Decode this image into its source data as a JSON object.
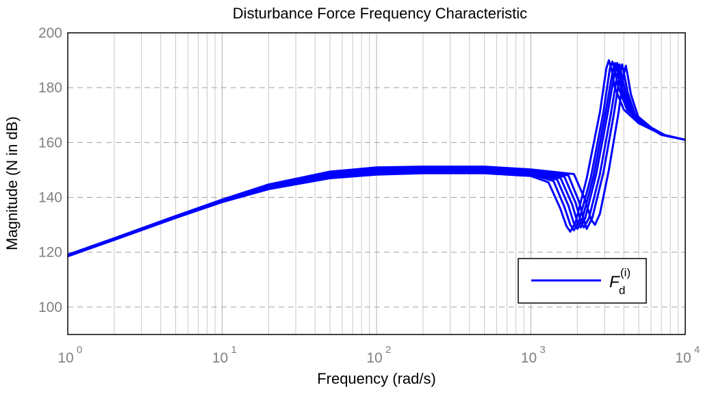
{
  "chart_data": {
    "type": "line",
    "title": "Disturbance Force Frequency Characteristic",
    "xlabel": "Frequency (rad/s)",
    "ylabel": "Magnitude (N in dB)",
    "x_scale": "log",
    "xlim": [
      1,
      10000
    ],
    "ylim": [
      90,
      200
    ],
    "x_ticks": [
      {
        "base": "10",
        "exp": "0",
        "value": 1
      },
      {
        "base": "10",
        "exp": "1",
        "value": 10
      },
      {
        "base": "10",
        "exp": "2",
        "value": 100
      },
      {
        "base": "10",
        "exp": "3",
        "value": 1000
      },
      {
        "base": "10",
        "exp": "4",
        "value": 10000
      }
    ],
    "y_ticks": [
      "100",
      "120",
      "140",
      "160",
      "180",
      "200"
    ],
    "grid": true,
    "legend": {
      "position": "bottom-right",
      "symbol": "F",
      "sub": "d",
      "sup": "(i)"
    },
    "line_color": "#0000ff",
    "series": [
      {
        "x": [
          1,
          2,
          5,
          10,
          20,
          50,
          100,
          200,
          500,
          1000,
          1300,
          1550,
          1700,
          1800,
          1950,
          2300,
          2800,
          3080,
          3200,
          3350,
          3500,
          4000,
          5000,
          7000,
          10000
        ],
        "y": [
          118.5,
          124.5,
          132.5,
          138.3,
          143,
          147,
          148.3,
          148.8,
          148.8,
          147.8,
          145.5,
          136,
          129.5,
          127.5,
          131,
          147,
          171,
          187,
          190,
          186,
          180,
          172,
          167,
          163,
          161
        ]
      },
      {
        "x": [
          1,
          2,
          5,
          10,
          20,
          50,
          100,
          200,
          500,
          1000,
          1400,
          1650,
          1800,
          1900,
          2050,
          2450,
          2950,
          3250,
          3370,
          3500,
          3700,
          4200,
          5200,
          7000,
          10000
        ],
        "y": [
          118.6,
          124.6,
          132.6,
          138.5,
          143.4,
          147.6,
          149,
          149.4,
          149.4,
          148.4,
          146,
          136.5,
          130,
          128,
          131.5,
          147.5,
          171,
          187,
          189.5,
          186,
          180,
          172,
          167,
          163,
          161
        ]
      },
      {
        "x": [
          1,
          2,
          5,
          10,
          20,
          50,
          100,
          200,
          500,
          1000,
          1480,
          1750,
          1900,
          2000,
          2150,
          2550,
          3050,
          3400,
          3500,
          3650,
          3850,
          4350,
          5400,
          7000,
          10000
        ],
        "y": [
          118.7,
          124.7,
          132.7,
          138.6,
          143.7,
          148.1,
          149.5,
          149.9,
          149.9,
          148.9,
          146.5,
          137,
          130.5,
          128.5,
          132,
          148,
          171,
          186.5,
          189,
          185.5,
          179.5,
          171.5,
          166.5,
          163,
          161
        ]
      },
      {
        "x": [
          1,
          2,
          5,
          10,
          20,
          50,
          100,
          200,
          500,
          1000,
          1560,
          1850,
          2000,
          2100,
          2250,
          2650,
          3150,
          3500,
          3620,
          3750,
          3950,
          4450,
          5500,
          7000,
          10000
        ],
        "y": [
          118.8,
          124.8,
          132.8,
          138.8,
          144,
          148.5,
          150,
          150.3,
          150.3,
          149.3,
          147,
          137.5,
          131,
          129,
          132.5,
          148.5,
          171,
          186,
          189,
          185,
          179,
          171,
          166.5,
          163,
          161
        ]
      },
      {
        "x": [
          1,
          2,
          5,
          10,
          20,
          50,
          100,
          200,
          500,
          1000,
          1650,
          1950,
          2100,
          2200,
          2380,
          2800,
          3300,
          3650,
          3750,
          3880,
          4100,
          4600,
          5600,
          7000,
          10000
        ],
        "y": [
          118.9,
          124.9,
          133,
          139,
          144.3,
          148.9,
          150.4,
          150.7,
          150.7,
          149.7,
          147.5,
          138,
          131.5,
          129,
          132.5,
          148.5,
          170.5,
          185.5,
          188.5,
          184.5,
          178.5,
          170.5,
          166,
          162.8,
          161
        ]
      },
      {
        "x": [
          1,
          2,
          5,
          10,
          20,
          50,
          100,
          200,
          500,
          1000,
          1750,
          2050,
          2200,
          2300,
          2500,
          2950,
          3450,
          3800,
          3900,
          4030,
          4250,
          4750,
          5800,
          7000,
          10000
        ],
        "y": [
          119,
          125,
          133.1,
          139.1,
          144.5,
          149.2,
          150.7,
          151,
          151,
          150,
          148,
          138.5,
          132,
          128.5,
          132.5,
          149,
          170.5,
          185.5,
          188.5,
          184.5,
          178,
          170,
          166,
          162.8,
          161
        ]
      },
      {
        "x": [
          1,
          2,
          5,
          10,
          20,
          50,
          100,
          200,
          500,
          1000,
          1900,
          2250,
          2450,
          2600,
          2800,
          3200,
          3700,
          4000,
          4120,
          4250,
          4450,
          4950,
          6000,
          7500,
          10000
        ],
        "y": [
          119.1,
          125.1,
          133.2,
          139.2,
          144.7,
          149.4,
          150.9,
          151.2,
          151.2,
          150.2,
          148.5,
          139,
          132,
          130,
          134,
          150,
          171,
          185,
          188,
          184,
          177.5,
          169.5,
          165.5,
          162.5,
          161
        ]
      }
    ]
  }
}
